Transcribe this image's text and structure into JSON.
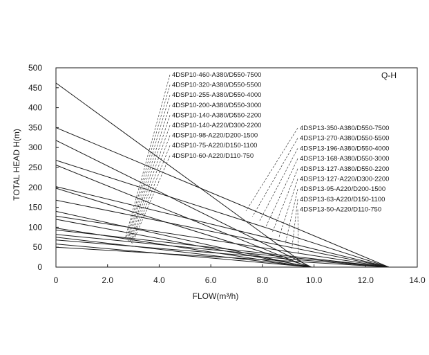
{
  "chart_data": {
    "type": "line",
    "title": "Q-H",
    "xlabel": "FLOW(m³/h)",
    "ylabel": "TOTAL HEAD H(m)",
    "xlim": [
      0,
      14
    ],
    "ylim": [
      0,
      500
    ],
    "x_ticks": [
      "0",
      "2.0",
      "4.0",
      "6.0",
      "8.0",
      "10.0",
      "12.0",
      "14.0"
    ],
    "y_ticks": [
      "0",
      "50",
      "100",
      "150",
      "200",
      "250",
      "300",
      "350",
      "400",
      "450",
      "500"
    ],
    "grid": false,
    "series": [
      {
        "name": "4DSP10-460-A380/D550-7500",
        "x": [
          0,
          9.8
        ],
        "y": [
          462,
          0
        ]
      },
      {
        "name": "4DSP10-320-A380/D550-5500",
        "x": [
          0,
          9.9
        ],
        "y": [
          318,
          0
        ]
      },
      {
        "name": "4DSP10-255-A380/D550-4000",
        "x": [
          0,
          9.8
        ],
        "y": [
          256,
          0
        ]
      },
      {
        "name": "4DSP10-200-A380/D550-3000",
        "x": [
          0,
          9.9
        ],
        "y": [
          198,
          0
        ]
      },
      {
        "name": "4DSP10-140-A380/D550-2200",
        "x": [
          0,
          9.8
        ],
        "y": [
          140,
          0
        ]
      },
      {
        "name": "4DSP10-140-A220/D300-2200",
        "x": [
          0,
          9.9
        ],
        "y": [
          120,
          0
        ]
      },
      {
        "name": "4DSP10-98-A220/D200-1500",
        "x": [
          0,
          9.8
        ],
        "y": [
          98,
          0
        ]
      },
      {
        "name": "4DSP10-75-A220/D150-1100",
        "x": [
          0,
          9.9
        ],
        "y": [
          75,
          0
        ]
      },
      {
        "name": "4DSP10-60-A220/D110-750",
        "x": [
          0,
          9.9
        ],
        "y": [
          58,
          0
        ]
      },
      {
        "name": "4DSP13-350-A380/D550-7500",
        "x": [
          0,
          12.9
        ],
        "y": [
          350,
          0
        ]
      },
      {
        "name": "4DSP13-270-A380/D550-5500",
        "x": [
          0,
          12.9
        ],
        "y": [
          268,
          0
        ]
      },
      {
        "name": "4DSP13-196-A380/D550-4000",
        "x": [
          0,
          12.9
        ],
        "y": [
          202,
          0
        ]
      },
      {
        "name": "4DSP13-168-A380/D550-3000",
        "x": [
          0,
          12.9
        ],
        "y": [
          168,
          0
        ]
      },
      {
        "name": "4DSP13-127-A380/D550-2200",
        "x": [
          0,
          12.9
        ],
        "y": [
          128,
          0
        ]
      },
      {
        "name": "4DSP13-127-A220/D300-2200",
        "x": [
          0,
          12.9
        ],
        "y": [
          93,
          0
        ]
      },
      {
        "name": "4DSP13-95-A220/D200-1500",
        "x": [
          0,
          12.9
        ],
        "y": [
          82,
          0
        ]
      },
      {
        "name": "4DSP13-63-A220/D150-1100",
        "x": [
          0,
          12.9
        ],
        "y": [
          68,
          0
        ]
      },
      {
        "name": "4DSP13-50-A220/D110-750",
        "x": [
          0,
          12.9
        ],
        "y": [
          50,
          0
        ]
      }
    ],
    "legend": {
      "group_a": {
        "labels": [
          "4DSP10-460-A380/D550-7500",
          "4DSP10-320-A380/D550-5500",
          "4DSP10-255-A380/D550-4000",
          "4DSP10-200-A380/D550-3000",
          "4DSP10-140-A380/D550-2200",
          "4DSP10-140-A220/D300-2200",
          "4DSP10-98-A220/D200-1500",
          "4DSP10-75-A220/D150-1100",
          "4DSP10-60-A220/D110-750"
        ]
      },
      "group_b": {
        "labels": [
          "4DSP13-350-A380/D550-7500",
          "4DSP13-270-A380/D550-5500",
          "4DSP13-196-A380/D550-4000",
          "4DSP13-168-A380/D550-3000",
          "4DSP13-127-A380/D550-2200",
          "4DSP13-127-A220/D300-2200",
          "4DSP13-95-A220/D200-1500",
          "4DSP13-63-A220/D150-1100",
          "4DSP13-50-A220/D110-750"
        ]
      }
    },
    "colors": {
      "lines": "#1a1a1a",
      "axes": "#1a1a1a",
      "leaders": "#333333"
    }
  }
}
